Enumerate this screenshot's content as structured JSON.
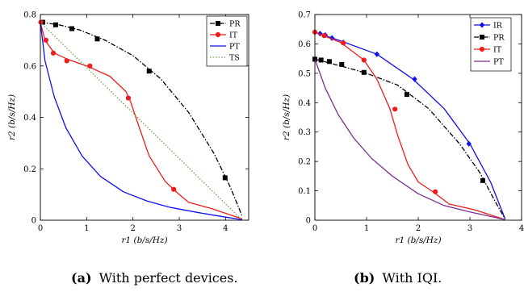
{
  "captions": [
    {
      "label": "(a)",
      "text": "With perfect devices."
    },
    {
      "label": "(b)",
      "text": "With IQI."
    }
  ],
  "chart_data": [
    {
      "type": "line",
      "title": "",
      "xlabel": "r1 (b/s/Hz)",
      "ylabel": "r2 (b/s/Hz)",
      "xlim": [
        0,
        4.5
      ],
      "ylim": [
        0,
        0.8
      ],
      "xticks": [
        0,
        1,
        2,
        3,
        4
      ],
      "yticks": [
        0,
        0.2,
        0.4,
        0.6,
        0.8
      ],
      "xtick_labels": [
        "0",
        "1",
        "2",
        "3",
        "4"
      ],
      "ytick_labels": [
        "0",
        "0.2",
        "0.4",
        "0.6",
        "0.8"
      ],
      "grid": false,
      "legend_position": "top-right",
      "series": [
        {
          "name": "PR",
          "color": "#000000",
          "dash": "dashdot",
          "marker": "square",
          "points": [
            [
              0,
              0.77
            ],
            [
              0.4,
              0.76
            ],
            [
              0.85,
              0.74
            ],
            [
              1.4,
              0.7
            ],
            [
              2.0,
              0.64
            ],
            [
              2.6,
              0.55
            ],
            [
              3.2,
              0.42
            ],
            [
              3.75,
              0.26
            ],
            [
              4.1,
              0.13
            ],
            [
              4.35,
              0.02
            ]
          ],
          "marker_points": [
            [
              0.05,
              0.77
            ],
            [
              0.33,
              0.76
            ],
            [
              0.68,
              0.745
            ],
            [
              1.23,
              0.705
            ],
            [
              2.35,
              0.58
            ],
            [
              3.99,
              0.165
            ]
          ]
        },
        {
          "name": "IT",
          "color": "#ee1c1c",
          "dash": "solid",
          "marker": "circle",
          "points": [
            [
              0,
              0.77
            ],
            [
              0.1,
              0.7
            ],
            [
              0.3,
              0.65
            ],
            [
              0.6,
              0.625
            ],
            [
              1.0,
              0.6
            ],
            [
              1.5,
              0.56
            ],
            [
              1.85,
              0.5
            ],
            [
              1.95,
              0.46
            ],
            [
              2.1,
              0.38
            ],
            [
              2.35,
              0.25
            ],
            [
              2.7,
              0.15
            ],
            [
              3.0,
              0.1
            ],
            [
              3.2,
              0.07
            ],
            [
              3.7,
              0.045
            ],
            [
              4.36,
              0.005
            ]
          ],
          "marker_points": [
            [
              0.01,
              0.77
            ],
            [
              0.12,
              0.7
            ],
            [
              0.28,
              0.65
            ],
            [
              0.57,
              0.62
            ],
            [
              1.07,
              0.6
            ],
            [
              1.9,
              0.475
            ],
            [
              2.88,
              0.12
            ]
          ]
        },
        {
          "name": "PT",
          "color": "#1010ee",
          "dash": "solid",
          "marker": "none",
          "points": [
            [
              0,
              0.77
            ],
            [
              0.1,
              0.62
            ],
            [
              0.3,
              0.48
            ],
            [
              0.55,
              0.36
            ],
            [
              0.9,
              0.25
            ],
            [
              1.3,
              0.17
            ],
            [
              1.8,
              0.11
            ],
            [
              2.3,
              0.075
            ],
            [
              2.8,
              0.05
            ],
            [
              3.4,
              0.03
            ],
            [
              4.0,
              0.012
            ],
            [
              4.36,
              0.002
            ]
          ],
          "marker_points": []
        },
        {
          "name": "TS",
          "color": "#6aa84f",
          "dash": "dotted",
          "marker": "none",
          "points": [
            [
              0,
              0.77
            ],
            [
              4.36,
              0
            ]
          ],
          "marker_points": []
        }
      ]
    },
    {
      "type": "line",
      "title": "",
      "xlabel": "r1 (b/s/Hz)",
      "ylabel": "r2 (b/s/Hz)",
      "xlim": [
        0,
        4
      ],
      "ylim": [
        0,
        0.7
      ],
      "xticks": [
        0,
        1,
        2,
        3,
        4
      ],
      "yticks": [
        0,
        0.1,
        0.2,
        0.3,
        0.4,
        0.5,
        0.6,
        0.7
      ],
      "xtick_labels": [
        "0",
        "1",
        "2",
        "3",
        "4"
      ],
      "ytick_labels": [
        "0",
        "0.1",
        "0.2",
        "0.3",
        "0.4",
        "0.5",
        "0.6",
        "0.7"
      ],
      "grid": false,
      "legend_position": "top-right",
      "series": [
        {
          "name": "IR",
          "color": "#1010ee",
          "dash": "solid",
          "marker": "diamond",
          "points": [
            [
              0,
              0.64
            ],
            [
              0.5,
              0.61
            ],
            [
              1.2,
              0.565
            ],
            [
              1.9,
              0.48
            ],
            [
              2.5,
              0.38
            ],
            [
              3.0,
              0.26
            ],
            [
              3.4,
              0.13
            ],
            [
              3.68,
              0.005
            ]
          ],
          "marker_points": [
            [
              0.0,
              0.64
            ],
            [
              0.1,
              0.635
            ],
            [
              0.2,
              0.63
            ],
            [
              0.33,
              0.62
            ],
            [
              0.55,
              0.605
            ],
            [
              1.2,
              0.565
            ],
            [
              1.93,
              0.48
            ],
            [
              2.98,
              0.26
            ]
          ]
        },
        {
          "name": "PR",
          "color": "#000000",
          "dash": "dashdot",
          "marker": "square",
          "points": [
            [
              0,
              0.548
            ],
            [
              0.5,
              0.525
            ],
            [
              1.0,
              0.5
            ],
            [
              1.6,
              0.46
            ],
            [
              2.2,
              0.38
            ],
            [
              2.8,
              0.26
            ],
            [
              3.2,
              0.16
            ],
            [
              3.5,
              0.06
            ],
            [
              3.68,
              0.005
            ]
          ],
          "marker_points": [
            [
              0.0,
              0.548
            ],
            [
              0.12,
              0.545
            ],
            [
              0.28,
              0.54
            ],
            [
              0.52,
              0.53
            ],
            [
              0.95,
              0.503
            ],
            [
              1.78,
              0.428
            ],
            [
              3.25,
              0.135
            ]
          ]
        },
        {
          "name": "IT",
          "color": "#ee1c1c",
          "dash": "solid",
          "marker": "circle",
          "points": [
            [
              0,
              0.64
            ],
            [
              0.5,
              0.605
            ],
            [
              0.95,
              0.545
            ],
            [
              1.2,
              0.48
            ],
            [
              1.45,
              0.38
            ],
            [
              1.6,
              0.29
            ],
            [
              1.8,
              0.19
            ],
            [
              2.0,
              0.13
            ],
            [
              2.3,
              0.095
            ],
            [
              2.6,
              0.055
            ],
            [
              3.1,
              0.035
            ],
            [
              3.68,
              0.002
            ]
          ],
          "marker_points": [
            [
              0.0,
              0.64
            ],
            [
              0.18,
              0.628
            ],
            [
              0.55,
              0.603
            ],
            [
              0.95,
              0.545
            ],
            [
              1.55,
              0.378
            ],
            [
              2.33,
              0.097
            ]
          ]
        },
        {
          "name": "PT",
          "color": "#7b2d8e",
          "dash": "solid",
          "marker": "none",
          "points": [
            [
              0,
              0.548
            ],
            [
              0.2,
              0.45
            ],
            [
              0.45,
              0.36
            ],
            [
              0.75,
              0.28
            ],
            [
              1.1,
              0.21
            ],
            [
              1.5,
              0.15
            ],
            [
              2.0,
              0.09
            ],
            [
              2.5,
              0.05
            ],
            [
              3.0,
              0.028
            ],
            [
              3.68,
              0.002
            ]
          ],
          "marker_points": []
        }
      ]
    }
  ]
}
